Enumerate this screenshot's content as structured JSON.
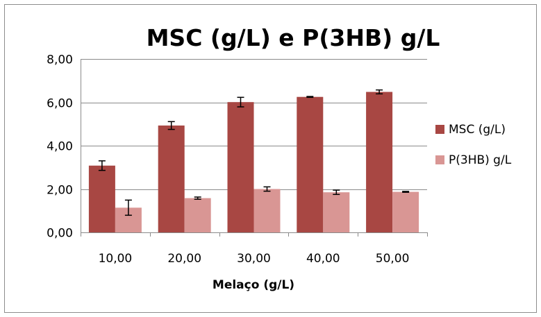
{
  "chart_data": {
    "type": "bar",
    "title": "MSC (g/L) e P(3HB) g/L",
    "xlabel": "Melaço (g/L)",
    "ylabel": "",
    "categories": [
      "10,00",
      "20,00",
      "30,00",
      "40,00",
      "50,00"
    ],
    "series": [
      {
        "name": "MSC (g/L)",
        "color": "#a84743",
        "values": [
          3.08,
          4.93,
          6.01,
          6.25,
          6.48
        ],
        "errors": [
          0.22,
          0.18,
          0.22,
          0.02,
          0.09
        ]
      },
      {
        "name": "P(3HB) g/L",
        "color": "#d99694",
        "values": [
          1.14,
          1.58,
          2.0,
          1.85,
          1.87
        ],
        "errors": [
          0.35,
          0.05,
          0.1,
          0.1,
          0.02
        ]
      }
    ],
    "ylim": [
      0,
      8
    ],
    "yticks": [
      "0,00",
      "2,00",
      "4,00",
      "6,00",
      "8,00"
    ],
    "grid": true,
    "legend": "right"
  }
}
